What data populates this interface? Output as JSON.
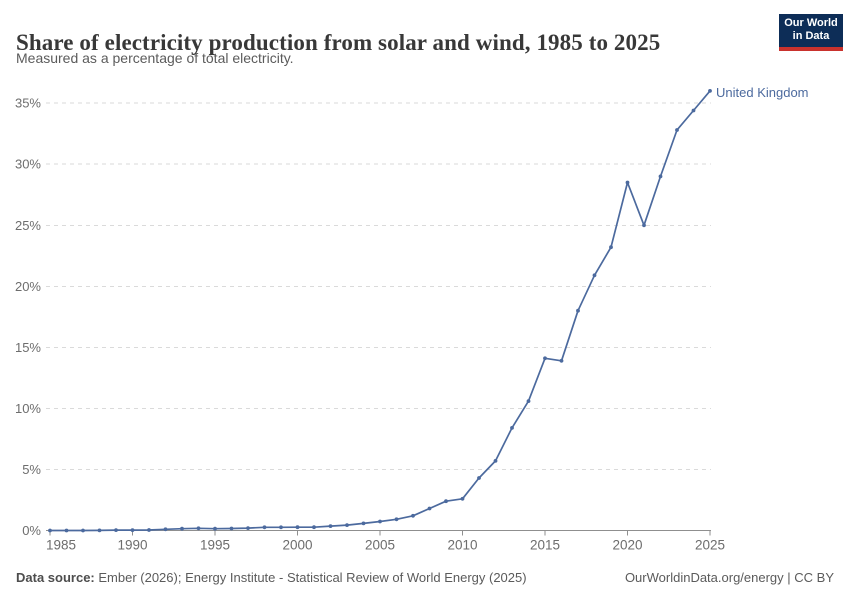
{
  "header": {
    "title": "Share of electricity production from solar and wind, 1985 to 2025",
    "subtitle": "Measured as a percentage of total electricity.",
    "logo": {
      "line1": "Our World",
      "line2": "in Data",
      "bg_color": "#0d2d57",
      "accent_color": "#c9322d"
    }
  },
  "chart_data": {
    "type": "line",
    "title": "Share of electricity production from solar and wind, 1985 to 2025",
    "xlabel": "",
    "ylabel": "",
    "x": [
      1985,
      1986,
      1987,
      1988,
      1989,
      1990,
      1991,
      1992,
      1993,
      1994,
      1995,
      1996,
      1997,
      1998,
      1999,
      2000,
      2001,
      2002,
      2003,
      2004,
      2005,
      2006,
      2007,
      2008,
      2009,
      2010,
      2011,
      2012,
      2013,
      2014,
      2015,
      2016,
      2017,
      2018,
      2019,
      2020,
      2021,
      2022,
      2023,
      2024,
      2025
    ],
    "series": [
      {
        "name": "United Kingdom",
        "color": "#4c6a9e",
        "values": [
          0.0,
          0.0,
          0.0,
          0.01,
          0.03,
          0.03,
          0.04,
          0.1,
          0.15,
          0.18,
          0.15,
          0.16,
          0.2,
          0.26,
          0.26,
          0.27,
          0.27,
          0.36,
          0.44,
          0.58,
          0.74,
          0.92,
          1.2,
          1.8,
          2.4,
          2.6,
          4.3,
          5.7,
          8.4,
          10.6,
          14.1,
          13.9,
          18.0,
          20.9,
          23.2,
          28.5,
          25.0,
          29.0,
          32.8,
          34.4,
          36.0
        ]
      }
    ],
    "xlim": [
      1985,
      2025
    ],
    "ylim": [
      0,
      36
    ],
    "xticks": [
      1985,
      1990,
      1995,
      2000,
      2005,
      2010,
      2015,
      2020,
      2025
    ],
    "yticks": [
      0,
      5,
      10,
      15,
      20,
      25,
      30,
      35
    ],
    "ytick_suffix": "%",
    "grid": "horizontal-dashed",
    "legend": "line-end-label"
  },
  "footer": {
    "source_label": "Data source:",
    "source_text": " Ember (2026); Energy Institute - Statistical Review of World Energy (2025)",
    "credit": "OurWorldinData.org/energy | CC BY"
  }
}
